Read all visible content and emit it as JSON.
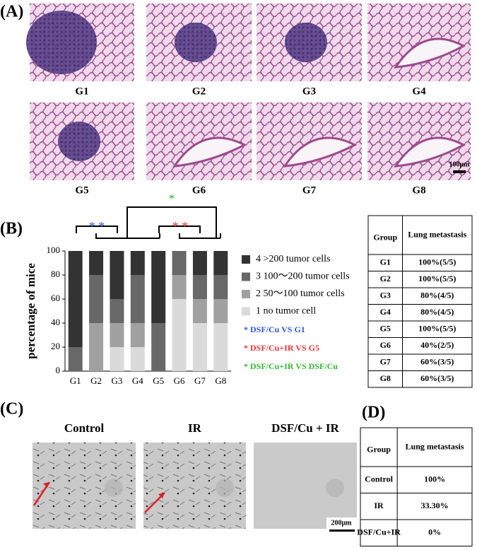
{
  "panel_a": {
    "label": "(A)",
    "captions": [
      "G1",
      "G2",
      "G3",
      "G4",
      "G5",
      "G6",
      "G7",
      "G8"
    ],
    "scale_bar": "100μm"
  },
  "panel_b": {
    "label": "(B)",
    "table": {
      "header": [
        "Group",
        "Lung metastasis"
      ],
      "rows": [
        [
          "G1",
          "100%(5/5)"
        ],
        [
          "G2",
          "100%(5/5)"
        ],
        [
          "G3",
          "80%(4/5)"
        ],
        [
          "G4",
          "80%(4/5)"
        ],
        [
          "G5",
          "100%(5/5)"
        ],
        [
          "G6",
          "40%(2/5)"
        ],
        [
          "G7",
          "60%(3/5)"
        ],
        [
          "G8",
          "60%(3/5)"
        ]
      ]
    }
  },
  "chart_data": {
    "type": "stacked_bar",
    "y_label": "percentage of mice",
    "categories": [
      "G1",
      "G2",
      "G3",
      "G4",
      "G5",
      "G6",
      "G7",
      "G8"
    ],
    "series": [
      {
        "name": "1 no tumor cell",
        "color": "#dadada",
        "values": [
          0,
          0,
          20,
          20,
          0,
          60,
          40,
          40
        ]
      },
      {
        "name": "2 50～100 tumor cells",
        "color": "#a0a0a0",
        "values": [
          0,
          40,
          20,
          20,
          0,
          20,
          20,
          20
        ]
      },
      {
        "name": "3 100～200 tumor cells",
        "color": "#686868",
        "values": [
          20,
          40,
          20,
          40,
          40,
          20,
          20,
          20
        ]
      },
      {
        "name": "4 >200 tumor cells",
        "color": "#333333",
        "values": [
          80,
          20,
          40,
          20,
          60,
          0,
          20,
          20
        ]
      }
    ],
    "ylim": [
      0,
      100
    ],
    "yticks": [
      0,
      20,
      40,
      60,
      80,
      100
    ],
    "significance": [
      {
        "text": "*",
        "color": "#33bb33"
      },
      {
        "text": "* *",
        "color": "#3355dd"
      },
      {
        "text": "* *",
        "color": "#ee3333"
      }
    ],
    "annotations": [
      {
        "text": "* DSF/Cu VS G1",
        "color": "#3355dd"
      },
      {
        "text": "* DSF/Cu+IR VS G5",
        "color": "#ee3333"
      },
      {
        "text": "* DSF/Cu+IR VS DSF/Cu",
        "color": "#33bb33"
      }
    ]
  },
  "panel_c": {
    "label": "(C)",
    "captions": [
      "Control",
      "IR",
      "DSF/Cu + IR"
    ],
    "scale_bar": "200μm"
  },
  "panel_d": {
    "label": "(D)",
    "table": {
      "header": [
        "Group",
        "Lung metastasis"
      ],
      "rows": [
        [
          "Control",
          "100%"
        ],
        [
          "IR",
          "33.30%"
        ],
        [
          "DSF/Cu+IR",
          "0%"
        ]
      ]
    }
  }
}
